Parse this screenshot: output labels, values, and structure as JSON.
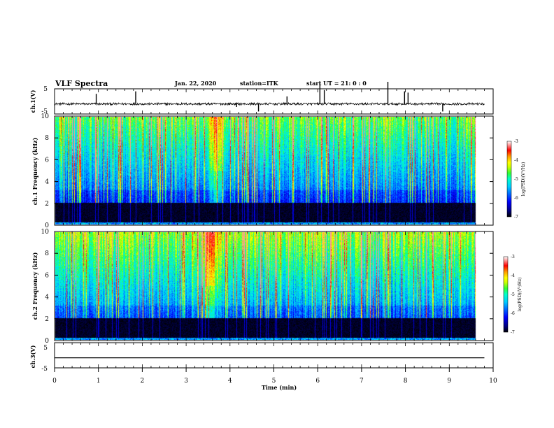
{
  "header": {
    "title": "VLF Spectra",
    "date": "Jan. 22, 2020",
    "station": "station=ITK",
    "start": "start UT =  21: 0  : 0"
  },
  "chart_data": [
    {
      "type": "line",
      "name": "ch1-waveform",
      "ylabel": "ch.1(V)",
      "ylim": [
        -5,
        5
      ],
      "yticks": [
        "5",
        "-5"
      ],
      "xlim": [
        0,
        10
      ],
      "baseline": -1,
      "spikes": [
        {
          "x": 0.95,
          "y": 3
        },
        {
          "x": 1.85,
          "y": 4
        },
        {
          "x": 4.15,
          "y": -5
        },
        {
          "x": 4.65,
          "y": -4
        },
        {
          "x": 5.3,
          "y": 2
        },
        {
          "x": 6.05,
          "y": 5
        },
        {
          "x": 6.15,
          "y": 4.5
        },
        {
          "x": 7.6,
          "y": 5
        },
        {
          "x": 7.98,
          "y": 4
        },
        {
          "x": 8.06,
          "y": 3.5
        },
        {
          "x": 8.85,
          "y": -4
        }
      ],
      "color": "#000000"
    },
    {
      "type": "heatmap",
      "name": "ch1-spectrogram",
      "ylabel": "ch.1 Frequency (kHz)",
      "ylim": [
        0,
        10
      ],
      "yticks": [
        "0",
        "2",
        "4",
        "6",
        "8",
        "10"
      ],
      "xlim": [
        0,
        10
      ],
      "colorbar": {
        "label": "log(PSD)(V²/Hz)",
        "range": [
          -7,
          -3
        ],
        "ticks": [
          "-3",
          "-4",
          "-5",
          "-6",
          "-7"
        ]
      },
      "bright_event_minutes": [
        3.5,
        4.0
      ]
    },
    {
      "type": "heatmap",
      "name": "ch2-spectrogram",
      "ylabel": "ch.2 Frequency (kHz)",
      "ylim": [
        0,
        10
      ],
      "yticks": [
        "0",
        "2",
        "4",
        "6",
        "8",
        "10"
      ],
      "xlim": [
        0,
        10
      ],
      "colorbar": {
        "label": "log(PSD)(V²/Hz)",
        "range": [
          -7,
          -3
        ],
        "ticks": [
          "-3",
          "-4",
          "-5",
          "-6",
          "-7"
        ]
      },
      "bright_event_minutes": [
        3.3,
        3.9
      ]
    },
    {
      "type": "line",
      "name": "ch3-waveform",
      "ylabel": "ch.3(V)",
      "ylim": [
        -5,
        5
      ],
      "yticks": [
        "5",
        "-5"
      ],
      "xlim": [
        0,
        10
      ],
      "baseline": -1,
      "color": "#000000"
    }
  ],
  "xaxis": {
    "label": "Time (min)",
    "ticks": [
      "0",
      "1",
      "2",
      "3",
      "4",
      "5",
      "6",
      "7",
      "8",
      "9",
      "10"
    ],
    "data_end_minutes": 9.8
  },
  "colors": {
    "colormap": [
      "#000000",
      "#000080",
      "#0000ff",
      "#0066ff",
      "#00ccff",
      "#00ffcc",
      "#33ff33",
      "#ccff00",
      "#ffff00",
      "#ff9900",
      "#ff0000",
      "#ff9999",
      "#ffffff"
    ]
  }
}
